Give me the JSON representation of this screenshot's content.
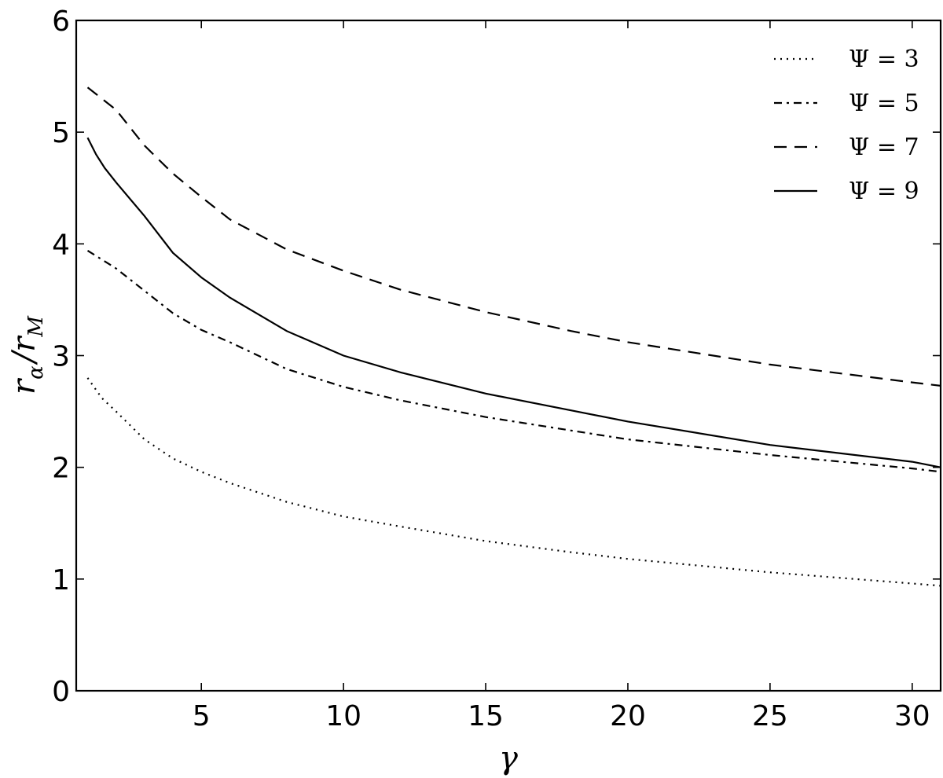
{
  "chart_data": {
    "type": "line",
    "title": "",
    "xlabel": "γ",
    "ylabel": {
      "main": "r",
      "sub1": "α",
      "sep": "/",
      "main2": "r",
      "sub2": "M"
    },
    "xlim": [
      0.6,
      31
    ],
    "ylim": [
      0,
      6
    ],
    "xticks": [
      5,
      10,
      15,
      20,
      25,
      30
    ],
    "yticks": [
      0,
      1,
      2,
      3,
      4,
      5,
      6
    ],
    "grid": false,
    "legend_position": "top-right",
    "series": [
      {
        "name": "Ψ = 3",
        "dash": "dotted",
        "x": [
          1,
          1.5,
          2,
          3,
          4,
          5,
          6,
          8,
          10,
          12,
          15,
          18,
          20,
          25,
          30,
          31
        ],
        "y": [
          2.8,
          2.62,
          2.5,
          2.25,
          2.08,
          1.96,
          1.86,
          1.69,
          1.56,
          1.47,
          1.34,
          1.24,
          1.18,
          1.06,
          0.96,
          0.94
        ]
      },
      {
        "name": "Ψ = 5",
        "dash": "dashdot",
        "x": [
          1,
          2,
          3,
          4,
          5,
          6,
          8,
          10,
          12,
          15,
          18,
          20,
          25,
          30,
          31
        ],
        "y": [
          3.94,
          3.78,
          3.58,
          3.38,
          3.23,
          3.12,
          2.88,
          2.72,
          2.6,
          2.45,
          2.33,
          2.25,
          2.11,
          1.99,
          1.96
        ]
      },
      {
        "name": "Ψ = 7",
        "dash": "dashed",
        "x": [
          1,
          2,
          3,
          4,
          5,
          6,
          8,
          10,
          12,
          15,
          18,
          20,
          25,
          30,
          31
        ],
        "y": [
          5.4,
          5.2,
          4.88,
          4.63,
          4.42,
          4.22,
          3.95,
          3.76,
          3.59,
          3.39,
          3.22,
          3.12,
          2.92,
          2.76,
          2.73
        ]
      },
      {
        "name": "Ψ = 9",
        "dash": "solid",
        "x": [
          1,
          1.3,
          1.6,
          2,
          3,
          4,
          5,
          6,
          8,
          10,
          12,
          15,
          18,
          20,
          25,
          30,
          31
        ],
        "y": [
          4.95,
          4.8,
          4.68,
          4.55,
          4.25,
          3.92,
          3.7,
          3.52,
          3.22,
          3.0,
          2.85,
          2.66,
          2.51,
          2.41,
          2.2,
          2.05,
          2.0
        ]
      }
    ]
  }
}
